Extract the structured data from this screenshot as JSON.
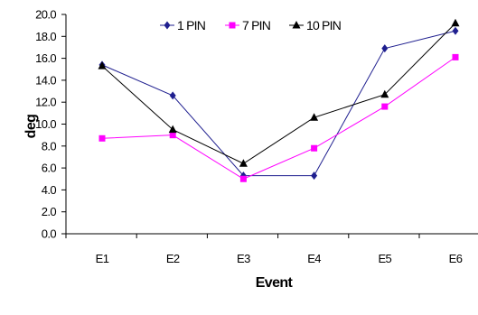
{
  "chart_data": {
    "type": "line",
    "xlabel": "Event",
    "ylabel": "deg",
    "categories": [
      "E1",
      "E2",
      "E3",
      "E4",
      "E5",
      "E6"
    ],
    "ylim": [
      0,
      20
    ],
    "yticks": [
      "0.0",
      "2.0",
      "4.0",
      "6.0",
      "8.0",
      "10.0",
      "12.0",
      "14.0",
      "16.0",
      "18.0",
      "20.0"
    ],
    "grid": false,
    "legend_position": "top",
    "series": [
      {
        "name": "1 PIN",
        "color": "#1f1f8f",
        "marker": "diamond",
        "values": [
          15.4,
          12.6,
          5.3,
          5.3,
          16.9,
          18.5
        ]
      },
      {
        "name": "7 PIN",
        "color": "#ff00ff",
        "marker": "square",
        "values": [
          8.7,
          9.0,
          5.0,
          7.8,
          11.6,
          16.1
        ]
      },
      {
        "name": "10 PIN",
        "color": "#000000",
        "marker": "triangle",
        "values": [
          15.3,
          9.5,
          6.4,
          10.6,
          12.7,
          19.2
        ]
      }
    ]
  }
}
